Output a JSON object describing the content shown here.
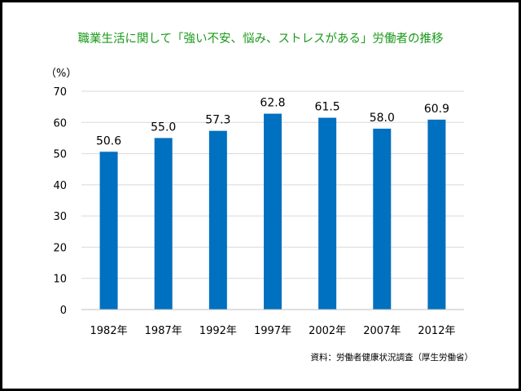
{
  "chart_data": {
    "type": "bar",
    "title": "職業生活に関して「強い不安、悩み、ストレスがある」労働者の推移",
    "ylabel": "（%）",
    "xlabel": "",
    "categories": [
      "1982年",
      "1987年",
      "1992年",
      "1997年",
      "2002年",
      "2007年",
      "2012年"
    ],
    "values": [
      50.6,
      55.0,
      57.3,
      62.8,
      61.5,
      58.0,
      60.9
    ],
    "value_labels": [
      "50.6",
      "55.0",
      "57.3",
      "62.8",
      "61.5",
      "58.0",
      "60.9"
    ],
    "ylim": [
      0,
      70
    ],
    "yticks": [
      0,
      10,
      20,
      30,
      40,
      50,
      60,
      70
    ],
    "grid": true,
    "bar_color": "#0070c0",
    "grid_color": "#d9d9d9",
    "title_color": "#1a9a1a",
    "source": "資料：労働者健康状況調査（厚生労働省）"
  }
}
